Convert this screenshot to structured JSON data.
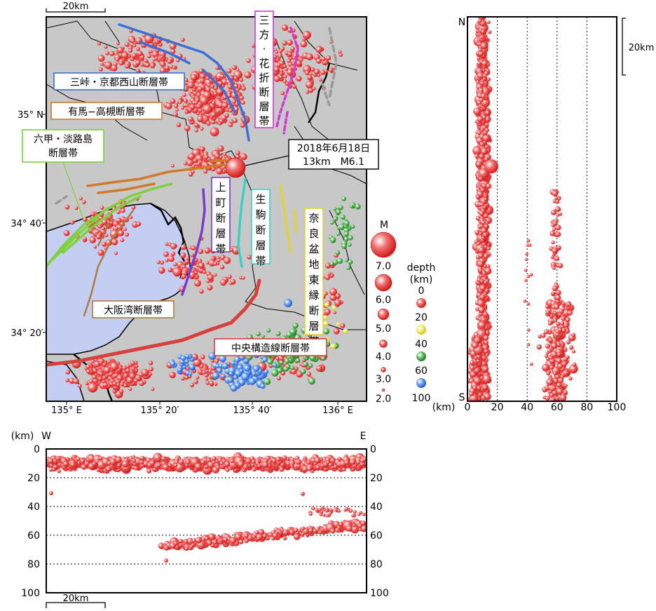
{
  "map": {
    "scale_label": "20km",
    "lat_labels": [
      "35° N",
      "34° 40′",
      "34° 20′"
    ],
    "lon_labels": [
      "135° E",
      "135° 20′",
      "135° 40′",
      "136° E"
    ],
    "event_label": {
      "line1": "2018年6月18日",
      "line2": "13km　M6.1"
    },
    "faults": [
      {
        "id": "misaki",
        "label": "三峠・京都西山断層帯",
        "color": "#3b6fd4"
      },
      {
        "id": "arima",
        "label": "有馬−高槻断層帯",
        "color": "#d07a2a"
      },
      {
        "id": "rokko",
        "label": "六甲・淡路島断層帯",
        "color": "#7fd03a"
      },
      {
        "id": "mikata",
        "label": "三方・花折断層帯",
        "color": "#d23ad2"
      },
      {
        "id": "uemachi",
        "label": "上町断層帯",
        "color": "#7a3ad0"
      },
      {
        "id": "ikoma",
        "label": "生駒断層帯",
        "color": "#3ad0c8"
      },
      {
        "id": "nara",
        "label": "奈良盆地東縁断層帯",
        "color": "#e0d23a"
      },
      {
        "id": "osakawan",
        "label": "大阪湾断層帯",
        "color": "#b07a40"
      },
      {
        "id": "chuo",
        "label": "中央構造線断層帯",
        "color": "#d84040"
      }
    ]
  },
  "legend_m": {
    "title": "M",
    "values": [
      "7.0",
      "6.0",
      "5.0",
      "4.0",
      "3.0",
      "2.0"
    ]
  },
  "legend_depth": {
    "title_line1": "depth",
    "title_line2": "(km)",
    "values": [
      "0",
      "20",
      "40",
      "60",
      "100"
    ],
    "colors": [
      "#e83a3a",
      "#e83a3a",
      "#f0e040",
      "#40a040",
      "#4080e0"
    ]
  },
  "ns_section": {
    "north": "N",
    "south": "S",
    "unit": "(km)",
    "scale_label": "20km",
    "x_ticks": [
      "0",
      "20",
      "40",
      "60",
      "80",
      "100"
    ]
  },
  "ew_section": {
    "west": "W",
    "east": "E",
    "unit": "(km)",
    "scale_label": "20km",
    "y_ticks": [
      "0",
      "20",
      "40",
      "60",
      "80",
      "100"
    ]
  }
}
